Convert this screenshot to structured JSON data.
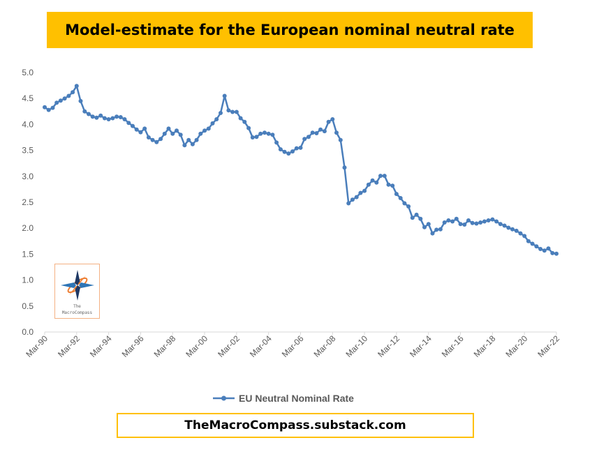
{
  "title": "Model-estimate for the European nominal neutral rate",
  "footer": "TheMacroCompass.substack.com",
  "logo": {
    "line1": "The",
    "line2": "MacroCompass"
  },
  "colors": {
    "accent": "#FFC000",
    "series": "#4A7EBB",
    "axis": "#D9D9D9",
    "text": "#595959"
  },
  "chart_data": {
    "type": "line",
    "ylim": [
      0,
      5
    ],
    "y_ticks": [
      "0.0",
      "0.5",
      "1.0",
      "1.5",
      "2.0",
      "2.5",
      "3.0",
      "3.5",
      "4.0",
      "4.5",
      "5.0"
    ],
    "x_tick_labels": [
      "Mar-90",
      "Mar-92",
      "Mar-94",
      "Mar-96",
      "Mar-98",
      "Mar-00",
      "Mar-02",
      "Mar-04",
      "Mar-06",
      "Mar-08",
      "Mar-10",
      "Mar-12",
      "Mar-14",
      "Mar-16",
      "Mar-18",
      "Mar-20",
      "Mar-22"
    ],
    "x_start": "Mar-90",
    "frequency": "quarterly",
    "legend": {
      "position": "bottom"
    },
    "grid": false,
    "series": [
      {
        "name": "EU Neutral Nominal Rate",
        "values": [
          4.33,
          4.28,
          4.32,
          4.42,
          4.46,
          4.5,
          4.55,
          4.62,
          4.74,
          4.45,
          4.25,
          4.2,
          4.15,
          4.13,
          4.17,
          4.12,
          4.1,
          4.12,
          4.15,
          4.14,
          4.1,
          4.03,
          3.97,
          3.9,
          3.85,
          3.92,
          3.75,
          3.7,
          3.66,
          3.72,
          3.82,
          3.92,
          3.82,
          3.88,
          3.8,
          3.6,
          3.7,
          3.62,
          3.7,
          3.82,
          3.88,
          3.92,
          4.02,
          4.1,
          4.22,
          4.55,
          4.27,
          4.24,
          4.24,
          4.12,
          4.05,
          3.93,
          3.75,
          3.76,
          3.82,
          3.84,
          3.82,
          3.8,
          3.65,
          3.52,
          3.47,
          3.44,
          3.48,
          3.54,
          3.55,
          3.72,
          3.76,
          3.84,
          3.83,
          3.9,
          3.87,
          4.05,
          4.1,
          3.84,
          3.7,
          3.17,
          2.48,
          2.55,
          2.6,
          2.68,
          2.72,
          2.84,
          2.92,
          2.88,
          3.01,
          3.01,
          2.84,
          2.82,
          2.66,
          2.58,
          2.48,
          2.42,
          2.2,
          2.26,
          2.18,
          2.02,
          2.08,
          1.9,
          1.97,
          1.98,
          2.11,
          2.15,
          2.13,
          2.18,
          2.08,
          2.07,
          2.15,
          2.1,
          2.09,
          2.11,
          2.13,
          2.15,
          2.17,
          2.13,
          2.08,
          2.05,
          2.01,
          1.98,
          1.95,
          1.9,
          1.85,
          1.75,
          1.7,
          1.65,
          1.6,
          1.57,
          1.61,
          1.52,
          1.51
        ]
      }
    ]
  }
}
